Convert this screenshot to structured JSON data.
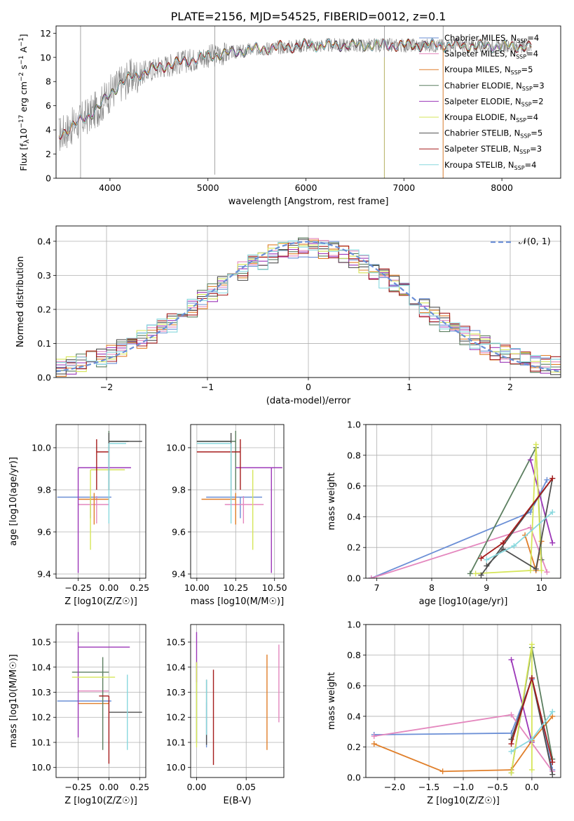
{
  "title": "PLATE=2156, MJD=54525, FIBERID=0012, z=0.1",
  "colors": {
    "Chabrier MILES": "#6b8fd6",
    "Salpeter MILES": "#e487be",
    "Kroupa MILES": "#e07f2a",
    "Chabrier ELODIE": "#5c7f60",
    "Salpeter ELODIE": "#9c37b8",
    "Kroupa ELODIE": "#d6e559",
    "Chabrier STELIB": "#505050",
    "Salpeter STELIB": "#a51c1c",
    "Kroupa STELIB": "#88d8de",
    "data": "#808080",
    "normal": "#6b8fd6"
  },
  "chart_data": [
    {
      "id": "spectrum",
      "type": "line",
      "xlabel": "wavelength [Angstrom, rest frame]",
      "ylabel": "Flux [f_λ 10^-17 erg cm^-2 s^-1 A^-1]",
      "xlim": [
        3450,
        8600
      ],
      "ylim": [
        0,
        12.6
      ],
      "xticks": [
        4000,
        5000,
        6000,
        7000,
        8000
      ],
      "yticks": [
        0,
        2,
        4,
        6,
        8,
        10,
        12
      ],
      "continuum": {
        "x": [
          3480,
          3600,
          3800,
          3900,
          4000,
          4100,
          4200,
          4300,
          4500,
          5000,
          5500,
          6000,
          6500,
          7000,
          7500,
          8000,
          8300
        ],
        "y": [
          3.6,
          4.2,
          5.3,
          6.0,
          7.0,
          7.8,
          8.3,
          8.6,
          9.2,
          10.1,
          10.7,
          11.0,
          11.0,
          11.0,
          11.0,
          10.9,
          10.9
        ]
      },
      "legend": [
        {
          "label": "Chabrier MILES, N",
          "n": "4"
        },
        {
          "label": "Salpeter MILES, N",
          "n": "4"
        },
        {
          "label": "Kroupa MILES, N",
          "n": "5"
        },
        {
          "label": "Chabrier ELODIE, N",
          "n": "3"
        },
        {
          "label": "Salpeter ELODIE, N",
          "n": "2"
        },
        {
          "label": "Kroupa ELODIE, N",
          "n": "4"
        },
        {
          "label": "Chabrier STELIB, N",
          "n": "5"
        },
        {
          "label": "Salpeter STELIB, N",
          "n": "3"
        },
        {
          "label": "Kroupa STELIB, N",
          "n": "4"
        }
      ],
      "legend_sub": "SSP",
      "legend_location": "upper right"
    },
    {
      "id": "residuals",
      "type": "histogram",
      "xlabel": "(data-model)/error",
      "ylabel": "Normed distribution",
      "xlim": [
        -2.5,
        2.5
      ],
      "ylim": [
        0,
        0.445
      ],
      "xticks": [
        -2,
        -1,
        0,
        1,
        2
      ],
      "yticks": [
        0,
        0.1,
        0.2,
        0.3,
        0.4
      ],
      "bin_width": 0.1,
      "normal_label": "𝒩(0, 1)",
      "legend_location": "upper right",
      "grid": true
    },
    {
      "id": "age_vs_Z",
      "type": "errorbar",
      "xlabel": "Z [log10(Z/Z☉)]",
      "ylabel": "age [log10(age/yr)]",
      "xlim": [
        -0.43,
        0.3
      ],
      "ylim": [
        9.38,
        10.11
      ],
      "xticks": [
        -0.25,
        0,
        0.25
      ],
      "yticks": [
        9.4,
        9.6,
        9.8,
        10.0
      ],
      "points": [
        {
          "m": "Chabrier MILES",
          "x": -0.15,
          "xe": [
            0.27,
            0.17
          ],
          "y": 9.765,
          "ye": [
            0.1,
            0.0
          ]
        },
        {
          "m": "Salpeter MILES",
          "x": -0.1,
          "xe": [
            0.15,
            0.1
          ],
          "y": 9.73,
          "ye": [
            0.09,
            0.04
          ]
        },
        {
          "m": "Kroupa MILES",
          "x": -0.12,
          "xe": [
            0.13,
            0.12
          ],
          "y": 9.755,
          "ye": [
            0.12,
            0.03
          ]
        },
        {
          "m": "Chabrier ELODIE",
          "x": 0.0,
          "xe": [
            0.0,
            0.16
          ],
          "y": 10.03,
          "ye": [
            0.23,
            0.05
          ]
        },
        {
          "m": "Salpeter ELODIE",
          "x": -0.25,
          "xe": [
            0.0,
            0.43
          ],
          "y": 9.905,
          "ye": [
            0.5,
            0.0
          ]
        },
        {
          "m": "Kroupa ELODIE",
          "x": -0.15,
          "xe": [
            0.0,
            0.28
          ],
          "y": 9.895,
          "ye": [
            0.38,
            0.0
          ]
        },
        {
          "m": "Chabrier STELIB",
          "x": 0.0,
          "xe": [
            0.0,
            0.27
          ],
          "y": 10.03,
          "ye": [
            0.23,
            0.04
          ]
        },
        {
          "m": "Salpeter STELIB",
          "x": -0.1,
          "xe": [
            0.0,
            0.1
          ],
          "y": 9.98,
          "ye": [
            0.18,
            0.06
          ]
        },
        {
          "m": "Kroupa STELIB",
          "x": 0.0,
          "xe": [
            0.0,
            0.14
          ],
          "y": 10.02,
          "ye": [
            0.38,
            0.0
          ]
        }
      ],
      "grid": true
    },
    {
      "id": "age_vs_mass",
      "type": "errorbar",
      "xlabel": "mass [log10(M/M☉)]",
      "ylabel": "",
      "xlim": [
        9.96,
        10.56
      ],
      "ylim": [
        9.38,
        10.11
      ],
      "xticks": [
        10.0,
        10.25,
        10.5
      ],
      "yticks": [
        9.4,
        9.6,
        9.8,
        10.0
      ],
      "points": [
        {
          "m": "Chabrier MILES",
          "x": 10.28,
          "xe": [
            0.22,
            0.14
          ],
          "y": 9.765,
          "ye": [
            0.1,
            0.0
          ]
        },
        {
          "m": "Salpeter MILES",
          "x": 10.3,
          "xe": [
            0.12,
            0.13
          ],
          "y": 9.73,
          "ye": [
            0.09,
            0.04
          ]
        },
        {
          "m": "Kroupa MILES",
          "x": 10.25,
          "xe": [
            0.22,
            0.0
          ],
          "y": 9.755,
          "ye": [
            0.12,
            0.03
          ]
        },
        {
          "m": "Chabrier ELODIE",
          "x": 10.25,
          "xe": [
            0.25,
            0.0
          ],
          "y": 10.03,
          "ye": [
            0.23,
            0.05
          ]
        },
        {
          "m": "Salpeter ELODIE",
          "x": 10.48,
          "xe": [
            0.23,
            0.07
          ],
          "y": 9.905,
          "ye": [
            0.5,
            0.0
          ]
        },
        {
          "m": "Kroupa ELODIE",
          "x": 10.36,
          "xe": [
            0.0,
            0.0
          ],
          "y": 9.895,
          "ye": [
            0.38,
            0.0
          ]
        },
        {
          "m": "Chabrier STELIB",
          "x": 10.22,
          "xe": [
            0.22,
            0.0
          ],
          "y": 10.03,
          "ye": [
            0.23,
            0.04
          ]
        },
        {
          "m": "Salpeter STELIB",
          "x": 10.28,
          "xe": [
            0.28,
            0.0
          ],
          "y": 9.98,
          "ye": [
            0.18,
            0.06
          ]
        },
        {
          "m": "Kroupa STELIB",
          "x": 10.22,
          "xe": [
            0.22,
            0.0
          ],
          "y": 10.02,
          "ye": [
            0.38,
            0.0
          ]
        }
      ],
      "grid": true
    },
    {
      "id": "weight_vs_age",
      "type": "line",
      "xlabel": "age [log10(age/yr)]",
      "ylabel": "mass weight",
      "xlim": [
        6.8,
        10.35
      ],
      "ylim": [
        0,
        1.0
      ],
      "xticks": [
        7,
        8,
        9,
        10
      ],
      "yticks": [
        0.0,
        0.2,
        0.4,
        0.6,
        0.8,
        1.0
      ],
      "series": [
        {
          "m": "Chabrier MILES",
          "x": [
            6.9,
            9.8,
            10.1
          ],
          "y": [
            0.0,
            0.43,
            0.64
          ]
        },
        {
          "m": "Salpeter MILES",
          "x": [
            6.9,
            9.8,
            10.1
          ],
          "y": [
            0.0,
            0.33,
            0.04
          ]
        },
        {
          "m": "Kroupa MILES",
          "x": [
            9.7,
            9.9,
            10.0
          ],
          "y": [
            0.28,
            0.05,
            0.24
          ]
        },
        {
          "m": "Chabrier ELODIE",
          "x": [
            8.7,
            9.9,
            10.0
          ],
          "y": [
            0.03,
            0.85,
            0.12
          ]
        },
        {
          "m": "Salpeter ELODIE",
          "x": [
            9.8,
            10.2
          ],
          "y": [
            0.77,
            0.23
          ]
        },
        {
          "m": "Kroupa ELODIE",
          "x": [
            8.8,
            9.8,
            9.9,
            10.0
          ],
          "y": [
            0.03,
            0.05,
            0.87,
            0.05
          ]
        },
        {
          "m": "Chabrier STELIB",
          "x": [
            9.0,
            9.3,
            9.9,
            10.2,
            8.9
          ],
          "y": [
            0.08,
            0.19,
            0.06,
            0.65,
            0.02
          ]
        },
        {
          "m": "Salpeter STELIB",
          "x": [
            8.9,
            9.3,
            10.2
          ],
          "y": [
            0.13,
            0.23,
            0.65
          ]
        },
        {
          "m": "Kroupa STELIB",
          "x": [
            9.0,
            9.5,
            10.2
          ],
          "y": [
            0.12,
            0.21,
            0.43
          ]
        }
      ],
      "grid": true
    },
    {
      "id": "mass_vs_Z",
      "type": "errorbar",
      "xlabel": "Z [log10(Z/Z☉)]",
      "ylabel": "mass [log10(M/M☉)]",
      "xlim": [
        -0.43,
        0.3
      ],
      "ylim": [
        9.96,
        10.57
      ],
      "xticks": [
        -0.25,
        0,
        0.25
      ],
      "yticks": [
        10.0,
        10.1,
        10.2,
        10.3,
        10.4,
        10.5
      ],
      "points": [
        {
          "m": "Chabrier MILES",
          "x": -0.15,
          "xe": [
            0.27,
            0.17
          ],
          "y": 10.265,
          "ye": [
            0.0,
            0.0
          ]
        },
        {
          "m": "Salpeter MILES",
          "x": -0.1,
          "xe": [
            0.15,
            0.1
          ],
          "y": 10.305,
          "ye": [
            0.0,
            0.0
          ]
        },
        {
          "m": "Kroupa MILES",
          "x": -0.1,
          "xe": [
            0.15,
            0.1
          ],
          "y": 10.255,
          "ye": [
            0.0,
            0.0
          ]
        },
        {
          "m": "Chabrier ELODIE",
          "x": -0.05,
          "xe": [
            0.25,
            0.05
          ],
          "y": 10.38,
          "ye": [
            0.31,
            0.06
          ]
        },
        {
          "m": "Salpeter ELODIE",
          "x": -0.25,
          "xe": [
            0.0,
            0.42
          ],
          "y": 10.48,
          "ye": [
            0.36,
            0.06
          ]
        },
        {
          "m": "Kroupa ELODIE",
          "x": -0.05,
          "xe": [
            0.25,
            0.1
          ],
          "y": 10.36,
          "ye": [
            0.0,
            0.0
          ]
        },
        {
          "m": "Chabrier STELIB",
          "x": 0.0,
          "xe": [
            0.0,
            0.27
          ],
          "y": 10.22,
          "ye": [
            0.0,
            0.0
          ]
        },
        {
          "m": "Salpeter STELIB",
          "x": 0.0,
          "xe": [
            0.08,
            0.0
          ],
          "y": 10.285,
          "ye": [
            0.27,
            0.0
          ]
        },
        {
          "m": "Kroupa STELIB",
          "x": 0.15,
          "xe": [
            0.0,
            0.0
          ],
          "y": 10.24,
          "ye": [
            0.17,
            0.13
          ]
        }
      ],
      "grid": true
    },
    {
      "id": "mass_vs_ebv",
      "type": "errorbar",
      "xlabel": "E(B-V)",
      "ylabel": "",
      "xlim": [
        -0.006,
        0.088
      ],
      "ylim": [
        9.96,
        10.57
      ],
      "xticks": [
        0.0,
        0.05
      ],
      "yticks": [
        10.0,
        10.1,
        10.2,
        10.3,
        10.4,
        10.5
      ],
      "points": [
        {
          "m": "Chabrier MILES",
          "x": 0.01,
          "xe": [
            0,
            0
          ],
          "y": 10.2,
          "ye": [
            0.12,
            0.06
          ]
        },
        {
          "m": "Salpeter MILES",
          "x": 0.083,
          "xe": [
            0,
            0
          ],
          "y": 10.33,
          "ye": [
            0.15,
            0.16
          ]
        },
        {
          "m": "Kroupa MILES",
          "x": 0.071,
          "xe": [
            0,
            0
          ],
          "y": 10.26,
          "ye": [
            0.19,
            0.19
          ]
        },
        {
          "m": "Chabrier ELODIE",
          "x": 0.0,
          "xe": [
            0,
            0
          ],
          "y": 10.26,
          "ye": [
            0.16,
            0.16
          ]
        },
        {
          "m": "Salpeter ELODIE",
          "x": 0.0,
          "xe": [
            0,
            0
          ],
          "y": 10.44,
          "ye": [
            0.1,
            0.1
          ]
        },
        {
          "m": "Kroupa ELODIE",
          "x": 0.0,
          "xe": [
            0,
            0
          ],
          "y": 10.25,
          "ye": [
            0.17,
            0.17
          ]
        },
        {
          "m": "Chabrier STELIB",
          "x": 0.01,
          "xe": [
            0,
            0
          ],
          "y": 10.22,
          "ye": [
            0.13,
            0.13
          ]
        },
        {
          "m": "Salpeter STELIB",
          "x": 0.017,
          "xe": [
            0,
            0
          ],
          "y": 10.2,
          "ye": [
            0.19,
            0.19
          ]
        },
        {
          "m": "Kroupa STELIB",
          "x": 0.01,
          "xe": [
            0,
            0
          ],
          "y": 10.24,
          "ye": [
            0.11,
            0.11
          ]
        }
      ],
      "grid": true
    },
    {
      "id": "weight_vs_Z",
      "type": "line",
      "xlabel": "Z [log10(Z/Z☉)]",
      "ylabel": "mass weight",
      "xlim": [
        -2.42,
        0.42
      ],
      "ylim": [
        0,
        1.0
      ],
      "xticks": [
        -2.0,
        -1.5,
        -1.0,
        -0.5,
        0.0
      ],
      "yticks": [
        0.0,
        0.2,
        0.4,
        0.6,
        0.8,
        1.0
      ],
      "series": [
        {
          "m": "Chabrier MILES",
          "x": [
            -2.3,
            -0.3,
            0.0,
            0.3
          ],
          "y": [
            0.28,
            0.29,
            0.64,
            0.05
          ]
        },
        {
          "m": "Salpeter MILES",
          "x": [
            -2.3,
            -0.3,
            0.3
          ],
          "y": [
            0.27,
            0.41,
            0.04
          ]
        },
        {
          "m": "Kroupa MILES",
          "x": [
            -2.3,
            -1.3,
            -0.3,
            0.0,
            0.3
          ],
          "y": [
            0.22,
            0.04,
            0.05,
            0.24,
            0.4
          ]
        },
        {
          "m": "Chabrier ELODIE",
          "x": [
            -0.3,
            0.0,
            0.3
          ],
          "y": [
            0.03,
            0.85,
            0.12
          ]
        },
        {
          "m": "Salpeter ELODIE",
          "x": [
            -0.3,
            0.0
          ],
          "y": [
            0.77,
            0.23
          ]
        },
        {
          "m": "Kroupa ELODIE",
          "x": [
            -0.3,
            0.0,
            0.0
          ],
          "y": [
            0.03,
            0.87,
            0.05
          ]
        },
        {
          "m": "Chabrier STELIB",
          "x": [
            -0.3,
            0.0,
            0.3
          ],
          "y": [
            0.25,
            0.65,
            0.02
          ]
        },
        {
          "m": "Salpeter STELIB",
          "x": [
            -0.3,
            0.0,
            0.3
          ],
          "y": [
            0.22,
            0.65,
            0.1
          ]
        },
        {
          "m": "Kroupa STELIB",
          "x": [
            -0.3,
            0.0,
            0.3
          ],
          "y": [
            0.17,
            0.25,
            0.43
          ]
        }
      ],
      "grid": true
    }
  ]
}
